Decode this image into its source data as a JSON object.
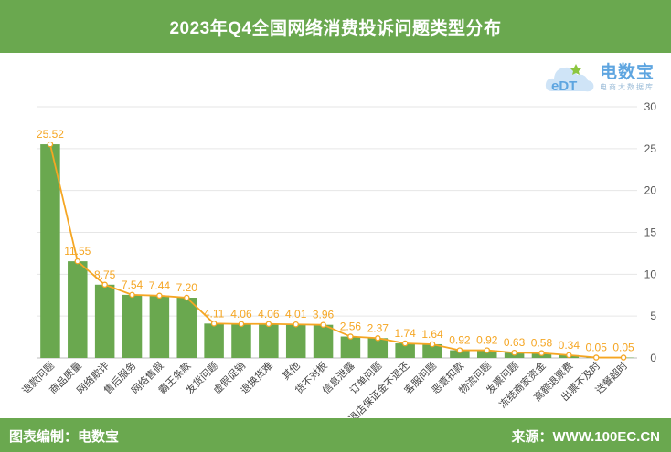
{
  "header": {
    "title": "2023年Q4全国网络消费投诉问题类型分布"
  },
  "footer": {
    "left": "图表编制：电数宝",
    "right": "来源：WWW.100EC.CN"
  },
  "logo": {
    "name": "电数宝",
    "sub": "电商大数据库",
    "icon": "cloud-edt-logo",
    "accent": "#5ea5e0"
  },
  "colors": {
    "bar": "#6aa84f",
    "line": "#f5a623",
    "header_bg": "#6aa84f"
  },
  "chart_data": {
    "type": "bar",
    "unit": "%",
    "categories": [
      "退款问题",
      "商品质量",
      "网络欺诈",
      "售后服务",
      "网络售假",
      "霸王条款",
      "发货问题",
      "虚假促销",
      "退换货难",
      "其他",
      "货不对板",
      "信息泄露",
      "订单问题",
      "退店保证金不退还",
      "客服问题",
      "恶意扣款",
      "物流问题",
      "发票问题",
      "冻结商家资金",
      "高额退票费",
      "出票不及时",
      "送餐超时"
    ],
    "values": [
      25.52,
      11.55,
      8.75,
      7.54,
      7.44,
      7.2,
      4.11,
      4.06,
      4.06,
      4.01,
      3.96,
      2.56,
      2.37,
      1.74,
      1.64,
      0.92,
      0.92,
      0.63,
      0.58,
      0.34,
      0.05,
      0.05
    ],
    "value_labels": [
      "25.52",
      "11.55",
      "8.75",
      "7.54",
      "7.44",
      "7.20",
      "4.11",
      "4.06",
      "4.06",
      "4.01",
      "3.96",
      "2.56",
      "2.37",
      "1.74",
      "1.64",
      "0.92",
      "0.92",
      "0.63",
      "0.58",
      "0.34",
      "0.05",
      "0.05"
    ],
    "ylim": [
      0,
      30
    ],
    "yticks": [
      "0",
      "5",
      "10",
      "15",
      "20",
      "25",
      "30"
    ],
    "grid": true,
    "overlay_line": true
  }
}
